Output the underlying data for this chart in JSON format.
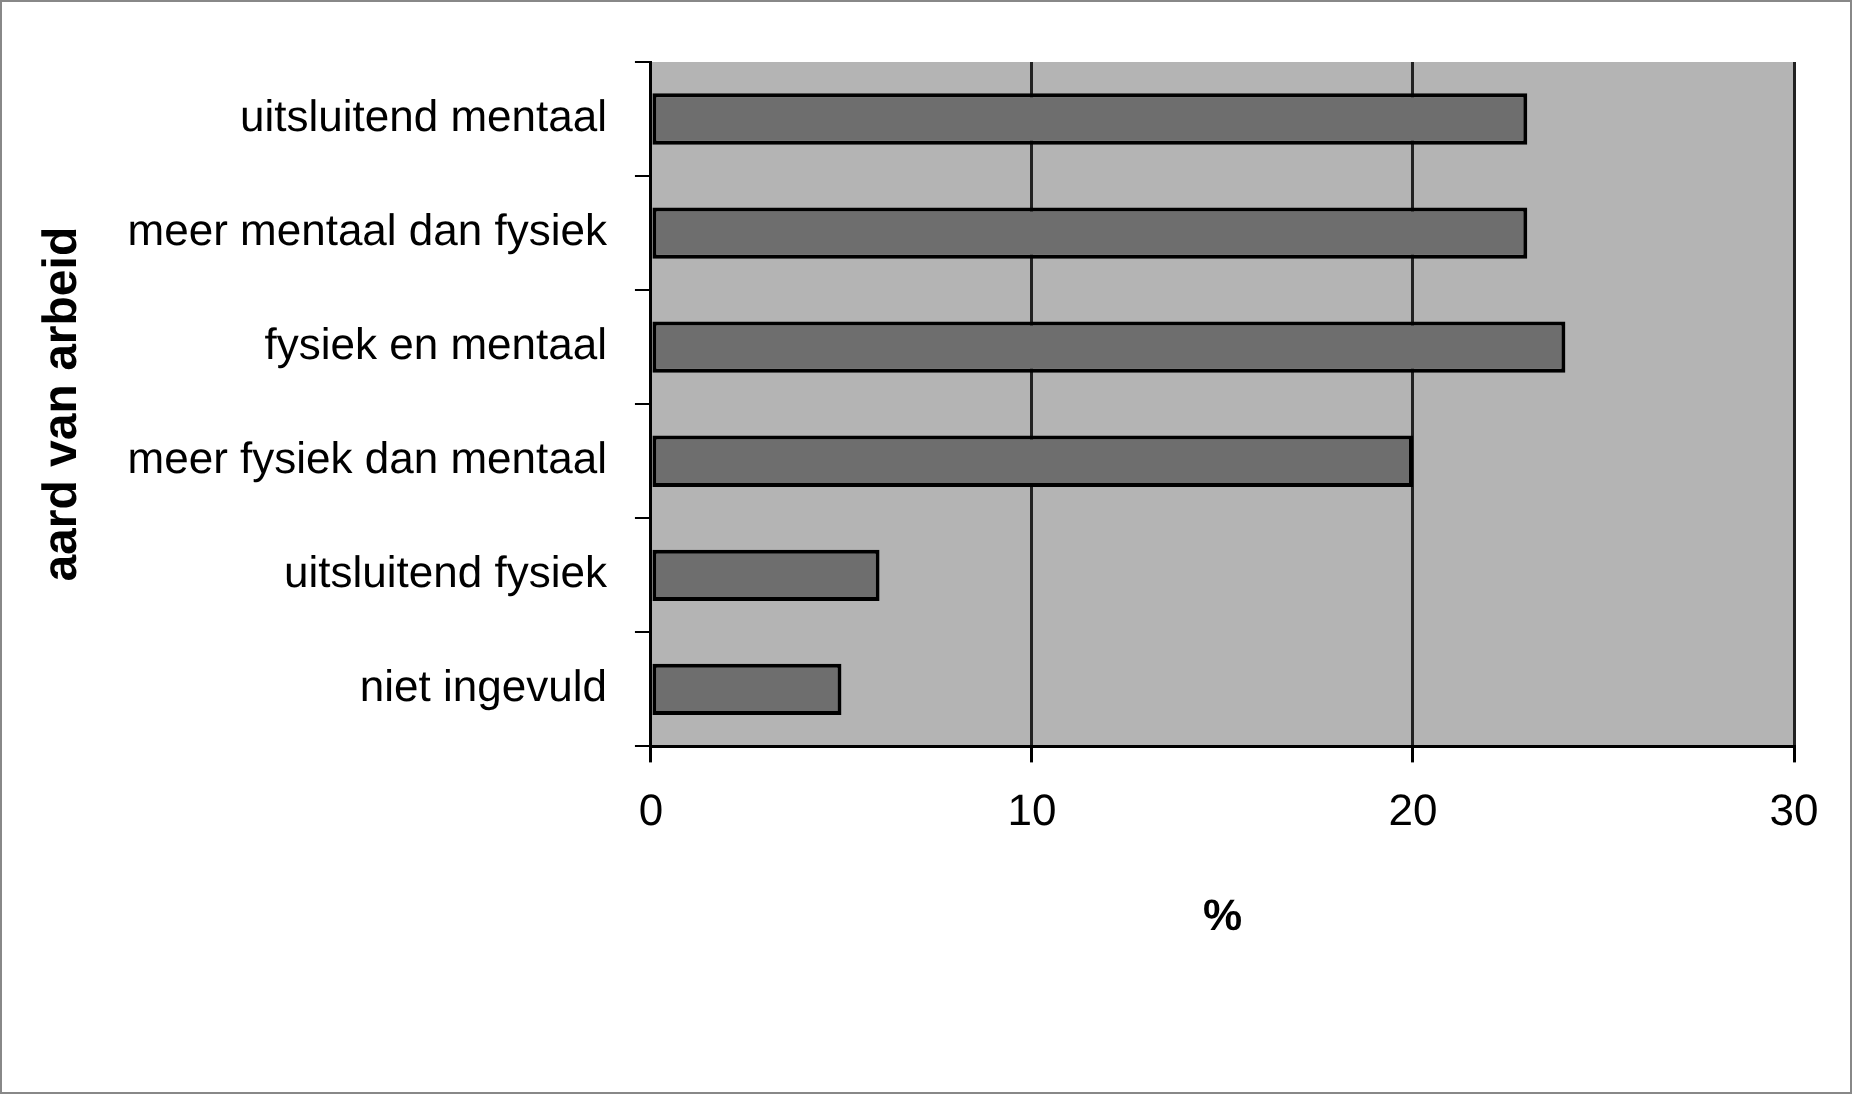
{
  "chart_data": {
    "type": "bar",
    "orientation": "horizontal",
    "ylabel": "aard van arbeid",
    "xlabel": "%",
    "categories": [
      "uitsluitend mentaal",
      "meer mentaal dan fysiek",
      "fysiek en mentaal",
      "meer fysiek dan mentaal",
      "uitsluitend fysiek",
      "niet ingevuld"
    ],
    "values": [
      23,
      23,
      24,
      20,
      6,
      5
    ],
    "color": "#6e6e6e",
    "xlim": [
      0,
      30
    ],
    "xticks": [
      0,
      10,
      20,
      30
    ],
    "grid": "x",
    "legend": false
  }
}
